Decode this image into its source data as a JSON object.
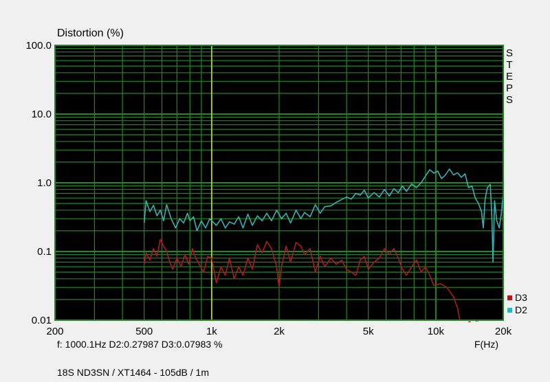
{
  "chart_data": {
    "type": "line",
    "title": "Distortion (%)",
    "xlabel": "F(Hz)",
    "x_scale": "log",
    "y_scale": "log",
    "xlim": [
      200,
      20000
    ],
    "ylim": [
      0.01,
      100
    ],
    "x_ticks": [
      {
        "value": 200,
        "label": "200"
      },
      {
        "value": 500,
        "label": "500"
      },
      {
        "value": 1000,
        "label": "1k"
      },
      {
        "value": 2000,
        "label": "2k"
      },
      {
        "value": 5000,
        "label": "5k"
      },
      {
        "value": 10000,
        "label": "10k"
      },
      {
        "value": 20000,
        "label": "20k"
      }
    ],
    "y_ticks": [
      {
        "value": 100,
        "label": "100.0"
      },
      {
        "value": 10,
        "label": "10.0"
      },
      {
        "value": 1,
        "label": "1.0"
      },
      {
        "value": 0.1,
        "label": "0.1"
      },
      {
        "value": 0.01,
        "label": "0.01"
      }
    ],
    "grid": true,
    "cursor_x": 1000.1,
    "side_label": "STEPS",
    "legend_position": "bottom-right",
    "series": [
      {
        "name": "D2",
        "color": "#34b3b7",
        "points": [
          [
            500,
            0.26
          ],
          [
            510,
            0.55
          ],
          [
            530,
            0.38
          ],
          [
            550,
            0.47
          ],
          [
            570,
            0.33
          ],
          [
            590,
            0.4
          ],
          [
            610,
            0.28
          ],
          [
            630,
            0.48
          ],
          [
            660,
            0.3
          ],
          [
            690,
            0.22
          ],
          [
            720,
            0.3
          ],
          [
            750,
            0.26
          ],
          [
            780,
            0.36
          ],
          [
            800,
            0.28
          ],
          [
            830,
            0.32
          ],
          [
            860,
            0.2
          ],
          [
            900,
            0.28
          ],
          [
            940,
            0.22
          ],
          [
            980,
            0.3
          ],
          [
            1000.1,
            0.28
          ],
          [
            1050,
            0.24
          ],
          [
            1100,
            0.3
          ],
          [
            1150,
            0.22
          ],
          [
            1200,
            0.27
          ],
          [
            1260,
            0.25
          ],
          [
            1320,
            0.32
          ],
          [
            1380,
            0.22
          ],
          [
            1450,
            0.35
          ],
          [
            1520,
            0.24
          ],
          [
            1600,
            0.33
          ],
          [
            1680,
            0.28
          ],
          [
            1760,
            0.36
          ],
          [
            1850,
            0.28
          ],
          [
            1950,
            0.4
          ],
          [
            2050,
            0.3
          ],
          [
            2150,
            0.36
          ],
          [
            2250,
            0.26
          ],
          [
            2380,
            0.4
          ],
          [
            2500,
            0.3
          ],
          [
            2600,
            0.37
          ],
          [
            2750,
            0.32
          ],
          [
            2900,
            0.48
          ],
          [
            3050,
            0.36
          ],
          [
            3200,
            0.45
          ],
          [
            3400,
            0.46
          ],
          [
            3600,
            0.52
          ],
          [
            3800,
            0.57
          ],
          [
            4000,
            0.62
          ],
          [
            4200,
            0.58
          ],
          [
            4400,
            0.7
          ],
          [
            4600,
            0.66
          ],
          [
            4800,
            0.78
          ],
          [
            5000,
            0.6
          ],
          [
            5300,
            0.72
          ],
          [
            5600,
            0.62
          ],
          [
            5900,
            0.8
          ],
          [
            6200,
            0.64
          ],
          [
            6500,
            0.82
          ],
          [
            6800,
            0.72
          ],
          [
            7100,
            0.9
          ],
          [
            7400,
            0.75
          ],
          [
            7800,
            0.96
          ],
          [
            8200,
            0.85
          ],
          [
            8600,
            1.0
          ],
          [
            9000,
            1.25
          ],
          [
            9400,
            1.55
          ],
          [
            9800,
            1.38
          ],
          [
            10200,
            1.48
          ],
          [
            10600,
            1.15
          ],
          [
            11000,
            1.28
          ],
          [
            11500,
            1.58
          ],
          [
            12000,
            1.3
          ],
          [
            12500,
            1.4
          ],
          [
            13000,
            1.2
          ],
          [
            13500,
            1.35
          ],
          [
            14000,
            0.85
          ],
          [
            14500,
            0.9
          ],
          [
            15000,
            0.6
          ],
          [
            15500,
            0.5
          ],
          [
            16000,
            0.38
          ],
          [
            16300,
            0.22
          ],
          [
            16600,
            0.58
          ],
          [
            17000,
            0.85
          ],
          [
            17500,
            0.95
          ],
          [
            17800,
            0.3
          ],
          [
            18000,
            0.07
          ],
          [
            18300,
            0.55
          ],
          [
            18700,
            0.28
          ],
          [
            19200,
            0.22
          ],
          [
            19600,
            0.35
          ],
          [
            20000,
            0.7
          ]
        ]
      },
      {
        "name": "D3",
        "color": "#b01a1a",
        "points": [
          [
            500,
            0.065
          ],
          [
            510,
            0.095
          ],
          [
            530,
            0.075
          ],
          [
            550,
            0.11
          ],
          [
            570,
            0.085
          ],
          [
            590,
            0.15
          ],
          [
            610,
            0.12
          ],
          [
            630,
            0.1
          ],
          [
            650,
            0.07
          ],
          [
            670,
            0.055
          ],
          [
            700,
            0.08
          ],
          [
            730,
            0.06
          ],
          [
            760,
            0.09
          ],
          [
            790,
            0.065
          ],
          [
            820,
            0.11
          ],
          [
            850,
            0.08
          ],
          [
            880,
            0.065
          ],
          [
            920,
            0.05
          ],
          [
            960,
            0.085
          ],
          [
            1000.1,
            0.08
          ],
          [
            1050,
            0.035
          ],
          [
            1100,
            0.06
          ],
          [
            1150,
            0.045
          ],
          [
            1200,
            0.08
          ],
          [
            1260,
            0.04
          ],
          [
            1320,
            0.06
          ],
          [
            1380,
            0.045
          ],
          [
            1450,
            0.08
          ],
          [
            1520,
            0.055
          ],
          [
            1600,
            0.125
          ],
          [
            1680,
            0.095
          ],
          [
            1760,
            0.14
          ],
          [
            1850,
            0.11
          ],
          [
            1950,
            0.06
          ],
          [
            2000,
            0.03
          ],
          [
            2050,
            0.06
          ],
          [
            2150,
            0.12
          ],
          [
            2250,
            0.07
          ],
          [
            2380,
            0.135
          ],
          [
            2500,
            0.12
          ],
          [
            2600,
            0.09
          ],
          [
            2750,
            0.11
          ],
          [
            2900,
            0.05
          ],
          [
            3050,
            0.085
          ],
          [
            3200,
            0.06
          ],
          [
            3400,
            0.08
          ],
          [
            3600,
            0.065
          ],
          [
            3800,
            0.075
          ],
          [
            4000,
            0.055
          ],
          [
            4200,
            0.05
          ],
          [
            4400,
            0.045
          ],
          [
            4600,
            0.075
          ],
          [
            4800,
            0.085
          ],
          [
            5000,
            0.055
          ],
          [
            5300,
            0.07
          ],
          [
            5600,
            0.08
          ],
          [
            5900,
            0.11
          ],
          [
            6200,
            0.09
          ],
          [
            6500,
            0.11
          ],
          [
            6800,
            0.08
          ],
          [
            7100,
            0.055
          ],
          [
            7400,
            0.045
          ],
          [
            7800,
            0.06
          ],
          [
            8200,
            0.075
          ],
          [
            8600,
            0.05
          ],
          [
            9000,
            0.06
          ],
          [
            9400,
            0.045
          ],
          [
            9800,
            0.032
          ],
          [
            10500,
            0.034
          ],
          [
            11200,
            0.03
          ],
          [
            12000,
            0.022
          ],
          [
            12500,
            0.015
          ],
          [
            12800,
            0.01
          ]
        ]
      }
    ],
    "extra_segments": [
      {
        "series": "D3",
        "x_from": 14000,
        "x_to": 14300,
        "y": 0.0095
      },
      {
        "series": "D3",
        "x_from": 15000,
        "x_to": 15500,
        "y": 0.0098
      }
    ]
  },
  "readout": {
    "text": "f: 1000.1Hz      D2:0.27987   D3:0.07983 %"
  },
  "caption": "18S ND3SN / XT1464   -   105dB / 1m",
  "colors": {
    "plot_background": "#000000",
    "grid": "#1f8a1f",
    "cursor": "#e6d200",
    "border": "#1f8a1f"
  }
}
